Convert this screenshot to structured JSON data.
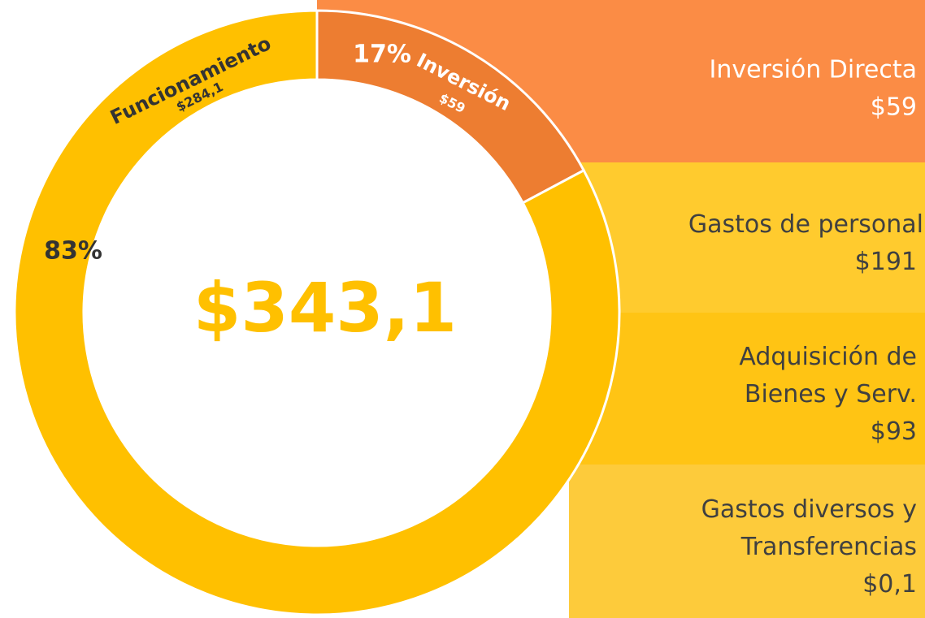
{
  "chart_data": {
    "type": "donut",
    "categories": [
      "Inversión",
      "Funcionamiento"
    ],
    "values": [
      59,
      284.1
    ],
    "value_labels": [
      "$59",
      "$284,1"
    ],
    "share_labels": [
      "17%",
      "83%"
    ],
    "colors": [
      "#ED7D31",
      "#FFC000"
    ],
    "center_label": "$343,1"
  },
  "breakdown": [
    {
      "lines": [
        "Inversión Directa",
        "$59"
      ],
      "color": "#FB8C45"
    },
    {
      "lines": [
        "Gastos de personal",
        "$191"
      ],
      "color": "#FFCB2E"
    },
    {
      "lines": [
        "Adquisición de",
        "Bienes y Serv.",
        "$93"
      ],
      "color": "#FFC414"
    },
    {
      "lines": [
        "Gastos diversos y",
        "Transferencias",
        "$0,1"
      ],
      "color": "#FDCB3B"
    }
  ]
}
